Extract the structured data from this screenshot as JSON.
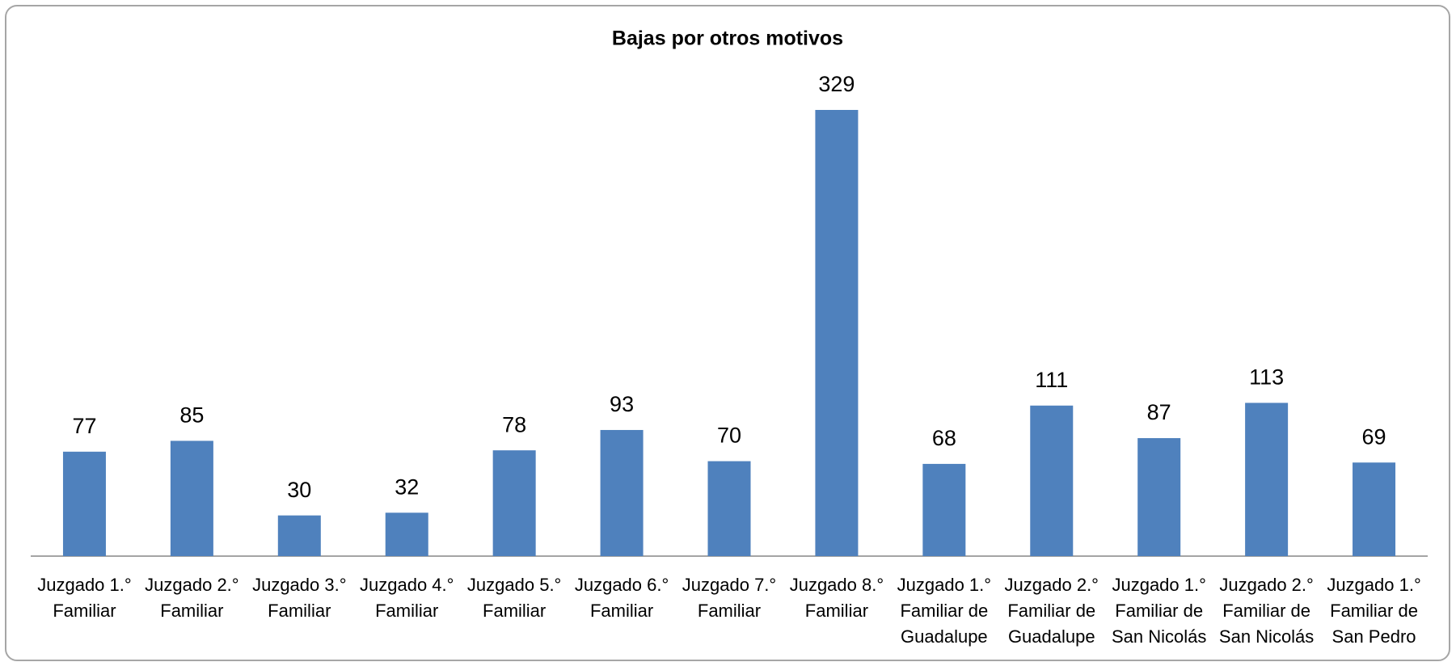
{
  "chart_data": {
    "type": "bar",
    "title": "Bajas por otros motivos",
    "categories": [
      "Juzgado 1.° Familiar",
      "Juzgado 2.° Familiar",
      "Juzgado 3.° Familiar",
      "Juzgado 4.° Familiar",
      "Juzgado 5.° Familiar",
      "Juzgado 6.° Familiar",
      "Juzgado 7.° Familiar",
      "Juzgado 8.° Familiar",
      "Juzgado 1.° Familiar de Guadalupe",
      "Juzgado 2.° Familiar de Guadalupe",
      "Juzgado 1.° Familiar de San Nicolás",
      "Juzgado 2.° Familiar de San Nicolás",
      "Juzgado 1.° Familiar de San Pedro"
    ],
    "values": [
      77,
      85,
      30,
      32,
      78,
      93,
      70,
      329,
      68,
      111,
      87,
      113,
      69
    ],
    "color": "#4f81bd"
  }
}
